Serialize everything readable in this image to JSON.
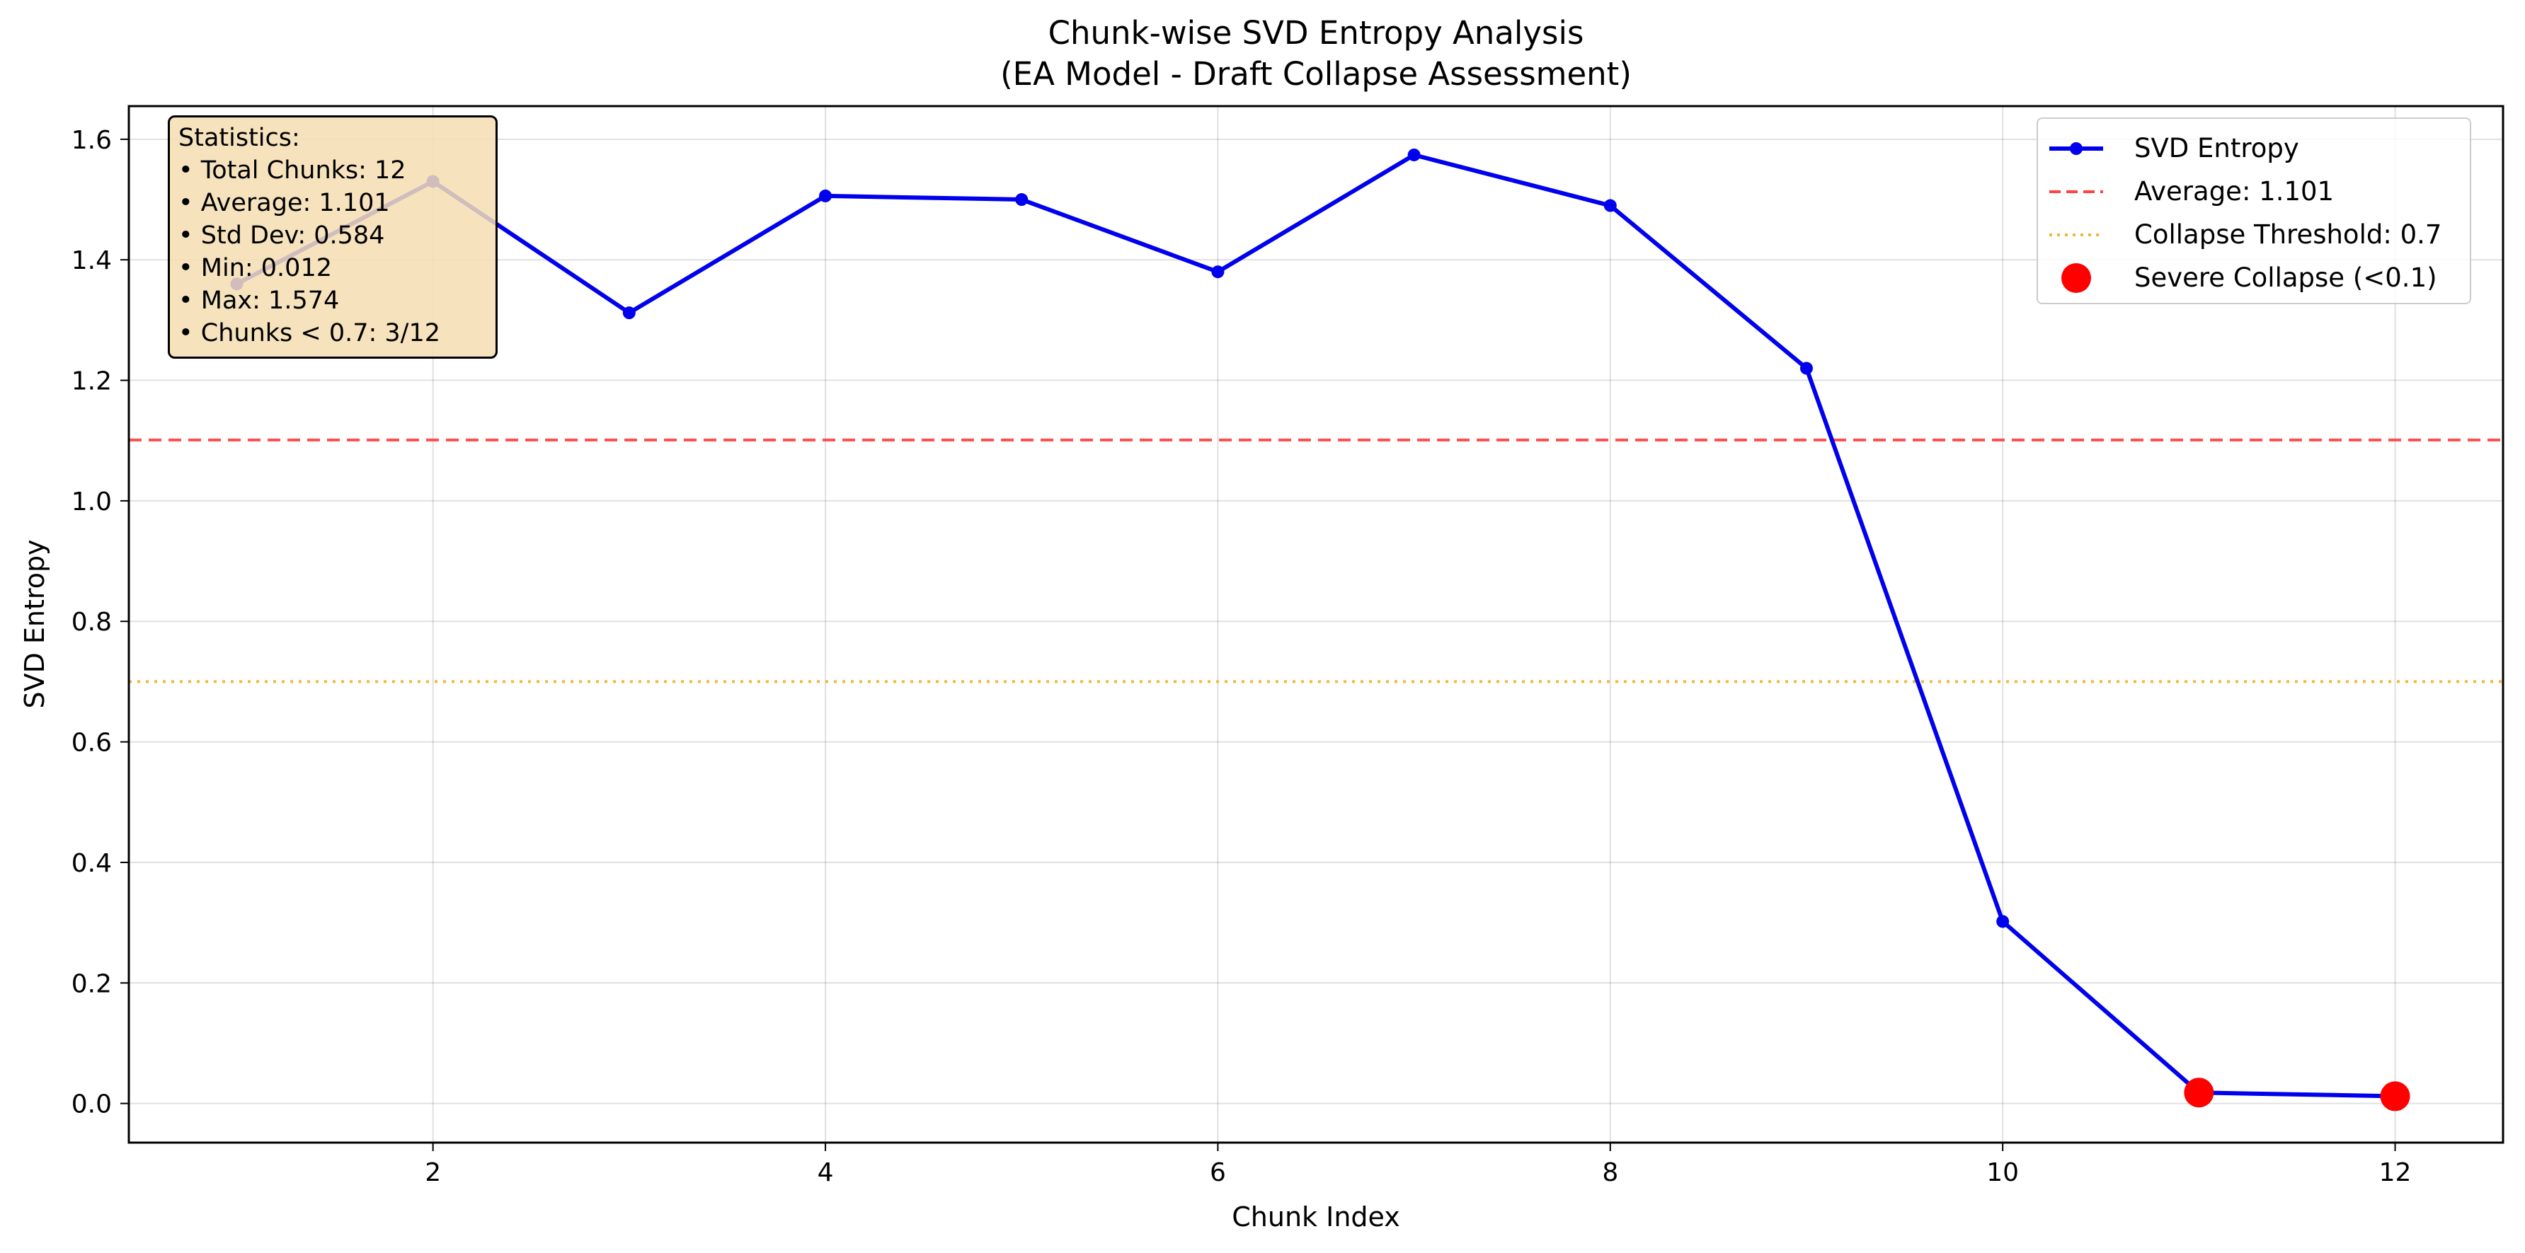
{
  "chart_data": {
    "type": "line",
    "title": "Chunk-wise SVD Entropy Analysis",
    "subtitle": "(EA Model - Draft Collapse Assessment)",
    "xlabel": "Chunk Index",
    "ylabel": "SVD Entropy",
    "xlim": [
      0.45,
      12.55
    ],
    "ylim": [
      -0.065,
      1.655
    ],
    "xticks": [
      2,
      4,
      6,
      8,
      10,
      12
    ],
    "yticks": [
      0.0,
      0.2,
      0.4,
      0.6,
      0.8,
      1.0,
      1.2,
      1.4,
      1.6
    ],
    "ytick_labels": [
      "0.0",
      "0.2",
      "0.4",
      "0.6",
      "0.8",
      "1.0",
      "1.2",
      "1.4",
      "1.6"
    ],
    "grid": true,
    "x": [
      1,
      2,
      3,
      4,
      5,
      6,
      7,
      8,
      9,
      10,
      11,
      12
    ],
    "series": [
      {
        "name": "SVD Entropy",
        "color": "#0000ee",
        "values": [
          1.36,
          1.53,
          1.312,
          1.506,
          1.5,
          1.38,
          1.574,
          1.49,
          1.22,
          0.302,
          0.018,
          0.012
        ]
      }
    ],
    "reference_lines": [
      {
        "name": "Average: 1.101",
        "value": 1.101,
        "color": "#ff4444",
        "style": "dashed"
      },
      {
        "name": "Collapse Threshold: 0.7",
        "value": 0.7,
        "color": "#f2b533",
        "style": "dotted"
      }
    ],
    "highlight": {
      "name": "Severe Collapse (<0.1)",
      "color": "#ff0000",
      "threshold": 0.1
    },
    "legend_position": "top-right",
    "stats": {
      "heading": "Statistics:",
      "total": "• Total Chunks: 12",
      "average": "• Average: 1.101",
      "std": "• Std Dev: 0.584",
      "min": "• Min: 0.012",
      "max": "• Max: 1.574",
      "below": "• Chunks < 0.7: 3/12"
    }
  }
}
